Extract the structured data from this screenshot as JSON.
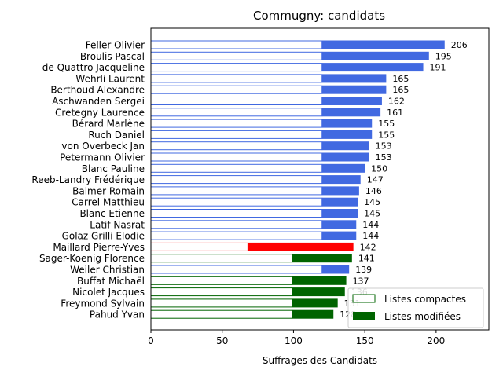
{
  "chart_data": {
    "type": "bar",
    "orientation": "horizontal",
    "title": "Commugny: candidats",
    "xlabel": "Suffrages des Candidats",
    "ylabel": "",
    "xlim": [
      0,
      237
    ],
    "xticks": [
      0,
      50,
      100,
      150,
      200
    ],
    "grid": false,
    "legend": {
      "placement": "lower-right",
      "entries": [
        {
          "label": "Listes compactes",
          "style": "outline",
          "color": "#006400"
        },
        {
          "label": "Listes modifiées",
          "style": "filled",
          "color": "#006400"
        }
      ]
    },
    "series_names": [
      "Listes compactes",
      "Listes modifiées"
    ],
    "candidates": [
      {
        "name": "Feller Olivier",
        "compact": 120,
        "total": 206,
        "color": "#4169e1"
      },
      {
        "name": "Broulis Pascal",
        "compact": 120,
        "total": 195,
        "color": "#4169e1"
      },
      {
        "name": "de Quattro Jacqueline",
        "compact": 120,
        "total": 191,
        "color": "#4169e1"
      },
      {
        "name": "Wehrli Laurent",
        "compact": 120,
        "total": 165,
        "color": "#4169e1"
      },
      {
        "name": "Berthoud Alexandre",
        "compact": 120,
        "total": 165,
        "color": "#4169e1"
      },
      {
        "name": "Aschwanden Sergei",
        "compact": 120,
        "total": 162,
        "color": "#4169e1"
      },
      {
        "name": "Cretegny Laurence",
        "compact": 120,
        "total": 161,
        "color": "#4169e1"
      },
      {
        "name": "Bérard Marlène",
        "compact": 120,
        "total": 155,
        "color": "#4169e1"
      },
      {
        "name": "Ruch Daniel",
        "compact": 120,
        "total": 155,
        "color": "#4169e1"
      },
      {
        "name": "von Overbeck Jan",
        "compact": 120,
        "total": 153,
        "color": "#4169e1"
      },
      {
        "name": "Petermann Olivier",
        "compact": 120,
        "total": 153,
        "color": "#4169e1"
      },
      {
        "name": "Blanc Pauline",
        "compact": 120,
        "total": 150,
        "color": "#4169e1"
      },
      {
        "name": "Reeb-Landry Frédérique",
        "compact": 120,
        "total": 147,
        "color": "#4169e1"
      },
      {
        "name": "Balmer Romain",
        "compact": 120,
        "total": 146,
        "color": "#4169e1"
      },
      {
        "name": "Carrel Matthieu",
        "compact": 120,
        "total": 145,
        "color": "#4169e1"
      },
      {
        "name": "Blanc Etienne",
        "compact": 120,
        "total": 145,
        "color": "#4169e1"
      },
      {
        "name": "Latif Nasrat",
        "compact": 120,
        "total": 144,
        "color": "#4169e1"
      },
      {
        "name": "Golaz Grilli Elodie",
        "compact": 120,
        "total": 144,
        "color": "#4169e1"
      },
      {
        "name": "Maillard Pierre-Yves",
        "compact": 68,
        "total": 142,
        "color": "#ff0000"
      },
      {
        "name": "Sager-Koenig Florence",
        "compact": 99,
        "total": 141,
        "color": "#006400"
      },
      {
        "name": "Weiler Christian",
        "compact": 120,
        "total": 139,
        "color": "#4169e1"
      },
      {
        "name": "Buffat Michaël",
        "compact": 99,
        "total": 137,
        "color": "#006400"
      },
      {
        "name": "Nicolet Jacques",
        "compact": 99,
        "total": 136,
        "color": "#006400"
      },
      {
        "name": "Freymond Sylvain",
        "compact": 99,
        "total": 131,
        "color": "#006400"
      },
      {
        "name": "Pahud Yvan",
        "compact": 99,
        "total": 128,
        "color": "#006400"
      }
    ]
  }
}
